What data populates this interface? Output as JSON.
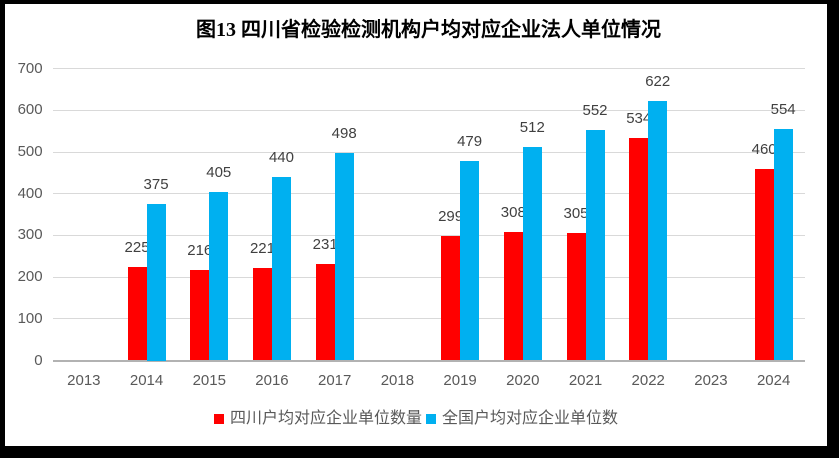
{
  "frame": {
    "border_color": "#000000",
    "chart_background": "#ffffff"
  },
  "chart_data": {
    "type": "bar",
    "title": "图13 四川省检验检测机构户均对应企业法人单位情况",
    "categories": [
      "2013",
      "2014",
      "2015",
      "2016",
      "2017",
      "2018",
      "2019",
      "2020",
      "2021",
      "2022",
      "2023",
      "2024"
    ],
    "series": [
      {
        "name": "四川户均对应企业单位数量",
        "color": "#ff0000",
        "values": [
          null,
          225,
          216,
          221,
          231,
          null,
          299,
          308,
          305,
          534,
          null,
          460
        ]
      },
      {
        "name": "全国户均对应企业单位数",
        "color": "#00b0f0",
        "values": [
          null,
          375,
          405,
          440,
          498,
          null,
          479,
          512,
          552,
          622,
          null,
          554
        ]
      }
    ],
    "xlabel": "",
    "ylabel": "",
    "ylim": [
      0,
      700
    ],
    "ytick_step": 100,
    "yticks": [
      "0",
      "100",
      "200",
      "300",
      "400",
      "500",
      "600",
      "700"
    ],
    "grid": true,
    "gridline_color": "#d9d9d9",
    "axis_line_color": "#b2b2b2",
    "tick_label_color": "#595959",
    "data_label_color": "#404040",
    "legend_position": "bottom",
    "data_labels": true
  }
}
